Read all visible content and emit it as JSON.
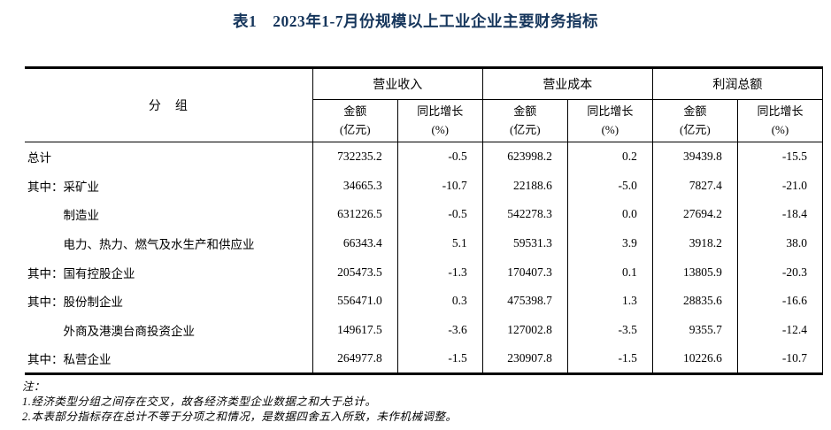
{
  "colors": {
    "title_color": "#16365c",
    "border_color": "#000000",
    "text_color": "#000000"
  },
  "title": "表1　2023年1-7月份规模以上工业企业主要财务指标",
  "table": {
    "group_header": "分　组",
    "metric_groups": {
      "revenue": "营业收入",
      "cost": "营业成本",
      "profit": "利润总额"
    },
    "sub_header": {
      "amount": "金额",
      "amount_unit": "(亿元)",
      "growth": "同比增长",
      "growth_unit": "(%)"
    },
    "rows": [
      {
        "prefix": "",
        "name": "总计",
        "values": [
          "732235.2",
          "-0.5",
          "623998.2",
          "0.2",
          "39439.8",
          "-15.5"
        ]
      },
      {
        "prefix": "其中：",
        "name": "采矿业",
        "values": [
          "34665.3",
          "-10.7",
          "22188.6",
          "-5.0",
          "7827.4",
          "-21.0"
        ]
      },
      {
        "prefix": "　　　",
        "name": "制造业",
        "values": [
          "631226.5",
          "-0.5",
          "542278.3",
          "0.0",
          "27694.2",
          "-18.4"
        ]
      },
      {
        "prefix": "　　　",
        "name": "电力、热力、燃气及水生产和供应业",
        "values": [
          "66343.4",
          "5.1",
          "59531.3",
          "3.9",
          "3918.2",
          "38.0"
        ]
      },
      {
        "prefix": "其中：",
        "name": "国有控股企业",
        "values": [
          "205473.5",
          "-1.3",
          "170407.3",
          "0.1",
          "13805.9",
          "-20.3"
        ]
      },
      {
        "prefix": "其中：",
        "name": "股份制企业",
        "values": [
          "556471.0",
          "0.3",
          "475398.7",
          "1.3",
          "28835.6",
          "-16.6"
        ]
      },
      {
        "prefix": "　　　",
        "name": "外商及港澳台商投资企业",
        "values": [
          "149617.5",
          "-3.6",
          "127002.8",
          "-3.5",
          "9355.7",
          "-12.4"
        ]
      },
      {
        "prefix": "其中：",
        "name": "私营企业",
        "values": [
          "264977.8",
          "-1.5",
          "230907.8",
          "-1.5",
          "10226.6",
          "-10.7"
        ]
      }
    ]
  },
  "notes": {
    "label": "注：",
    "items": [
      "1.经济类型分组之间存在交叉，故各经济类型企业数据之和大于总计。",
      "2.本表部分指标存在总计不等于分项之和情况，是数据四舍五入所致，未作机械调整。"
    ]
  }
}
